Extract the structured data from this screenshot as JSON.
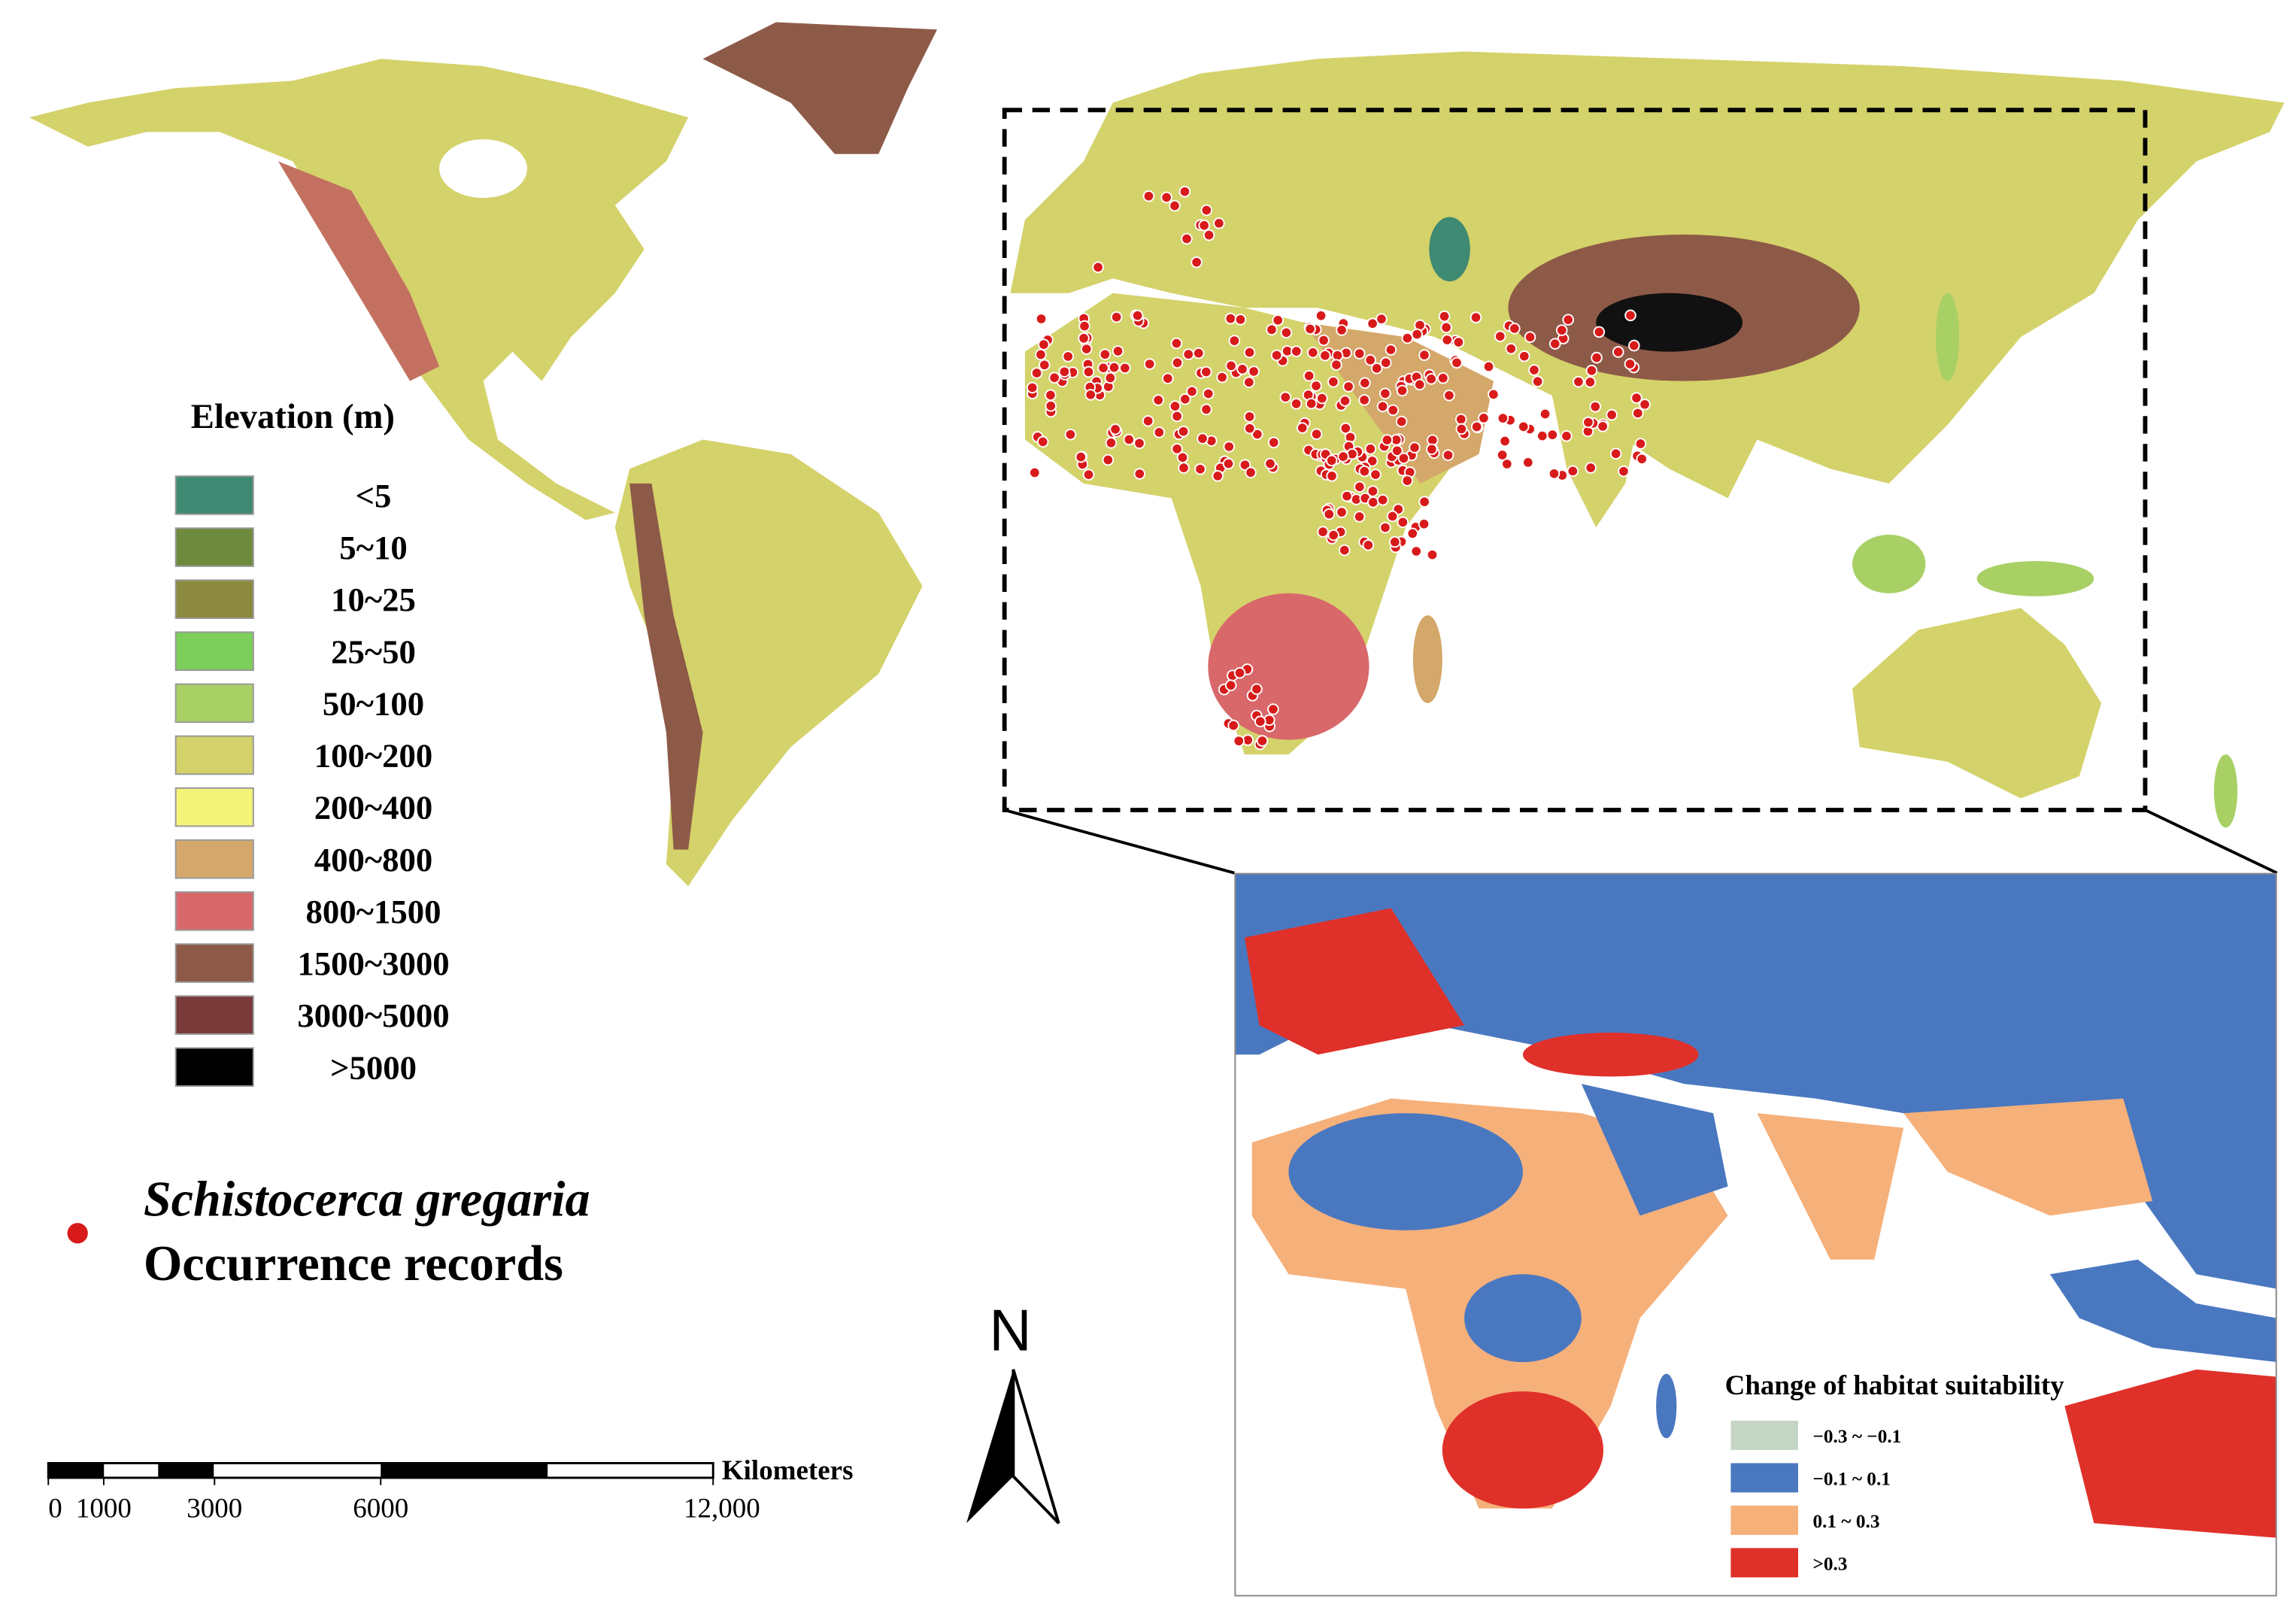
{
  "elevation_legend": {
    "title": "Elevation (m)",
    "items": [
      {
        "label": "<5",
        "color": "#3f8a72"
      },
      {
        "label": "5~10",
        "color": "#6e8a3c"
      },
      {
        "label": "10~25",
        "color": "#8c8a3e"
      },
      {
        "label": "25~50",
        "color": "#7ccf5a"
      },
      {
        "label": "50~100",
        "color": "#a8d065"
      },
      {
        "label": "100~200",
        "color": "#d4d26a"
      },
      {
        "label": "200~400",
        "color": "#f4f47a"
      },
      {
        "label": "400~800",
        "color": "#d4a86a"
      },
      {
        "label": "800~1500",
        "color": "#d8686a"
      },
      {
        "label": "1500~3000",
        "color": "#8e5a48"
      },
      {
        "label": "3000~5000",
        "color": "#7a3a3a"
      },
      {
        "label": ">5000",
        "color": "#000000"
      }
    ]
  },
  "occurrence_legend": {
    "species": "Schistocerca gregaria",
    "label": "Occurrence records",
    "color": "#d81a1a"
  },
  "scale_bar": {
    "unit": "Kilometers",
    "ticks": [
      0,
      1000,
      3000,
      6000,
      {
        "value": 12000,
        "label": "12,000"
      }
    ]
  },
  "north_arrow": {
    "label": "N"
  },
  "inset_legend": {
    "title": "Change of habitat suitability",
    "items": [
      {
        "label": "−0.3 ~ −0.1",
        "color": "#c5d5c5"
      },
      {
        "label": "−0.1 ~ 0.1",
        "color": "#4a78c0"
      },
      {
        "label": "0.1 ~ 0.3",
        "color": "#f6b07a"
      },
      {
        "label": ">0.3",
        "color": "#e0302a"
      }
    ]
  }
}
